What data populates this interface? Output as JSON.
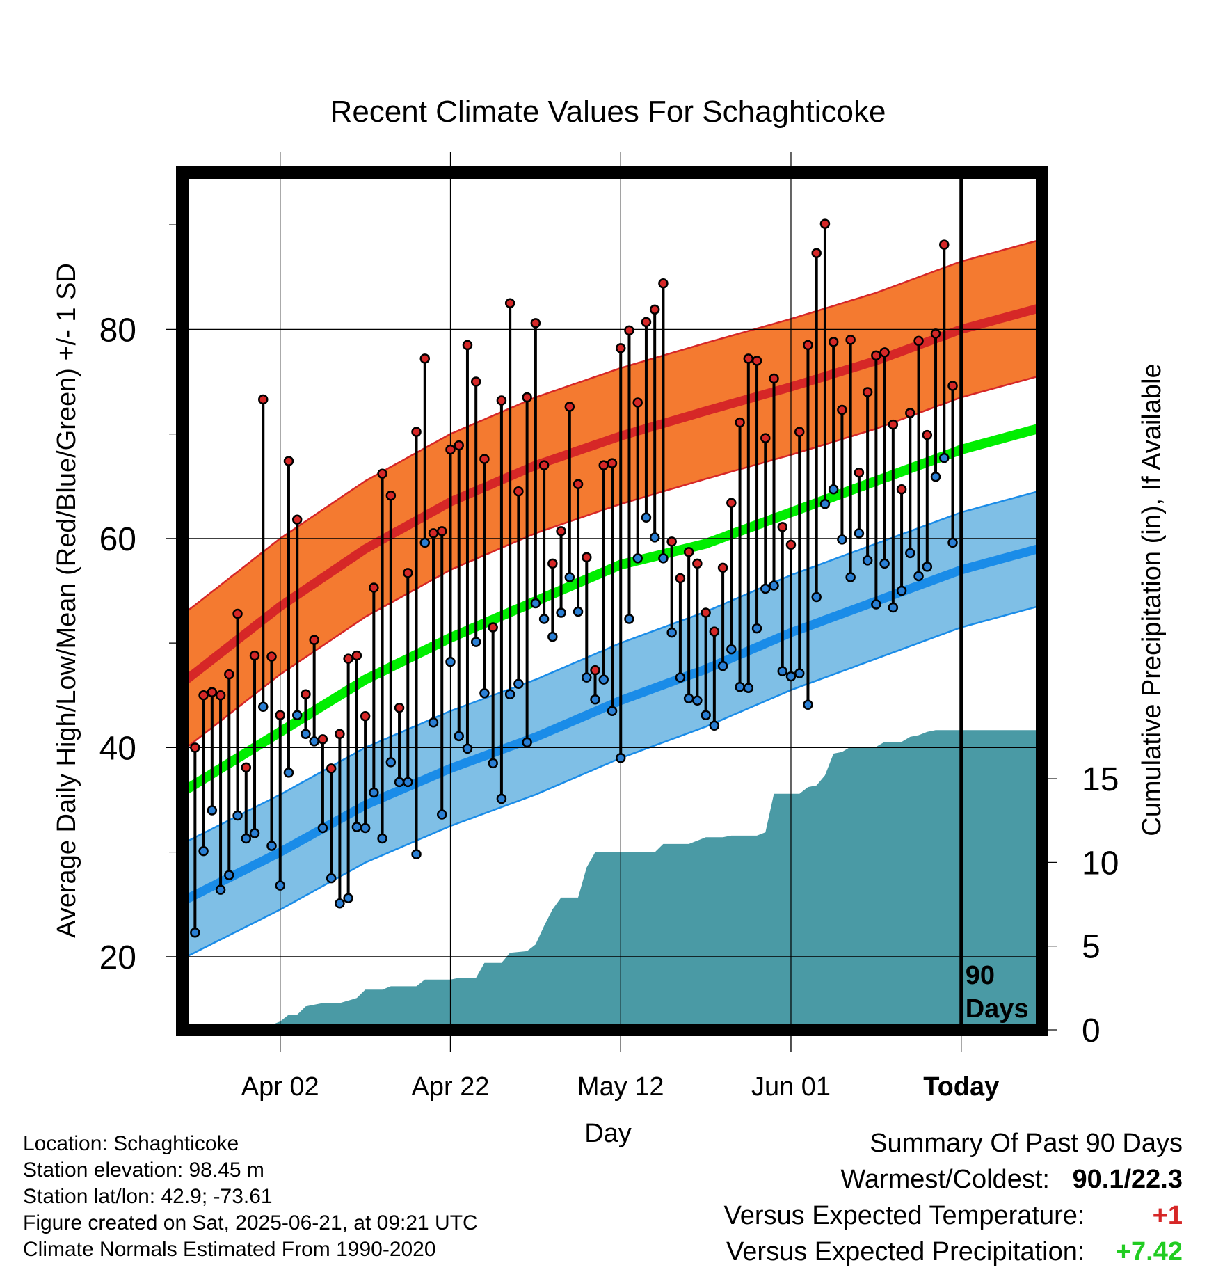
{
  "chart_data": {
    "type": "line",
    "title": "Recent Climate Values For Schaghticoke",
    "xlabel": "Day",
    "ylabel": "Average Daily High/Low/Mean (Red/Blue/Green) +/- 1 SD",
    "y2label": "Cumulative Precipitation (in), If Available",
    "x_ticks": [
      {
        "label": "Apr 02",
        "day": 10
      },
      {
        "label": "Apr 22",
        "day": 30
      },
      {
        "label": "May 12",
        "day": 50
      },
      {
        "label": "Jun 01",
        "day": 70
      },
      {
        "label": "Today",
        "day": 90
      }
    ],
    "y_ticks": [
      20,
      40,
      60,
      80
    ],
    "y2_ticks": [
      0,
      5,
      10,
      15
    ],
    "ylim": [
      13,
      95
    ],
    "y2lim": [
      0,
      51.2
    ],
    "xlim": [
      -1.5,
      99.5
    ],
    "grid": true,
    "today_marker": "90\nDays",
    "colors": {
      "high_band": "#f47a30",
      "high_line": "#d62727",
      "high_edge": "#d62727",
      "low_band": "#7fbfe6",
      "low_line": "#1a8ce8",
      "low_edge": "#1a8ce8",
      "mean_line": "#00ee00",
      "precip": "#4a9aa5",
      "high_point": "#d62727",
      "low_point": "#2a7fd4"
    },
    "normals": {
      "days": [
        -1,
        10,
        20,
        30,
        40,
        50,
        60,
        70,
        80,
        90,
        99
      ],
      "high_mean": [
        46.5,
        53.5,
        59,
        63.5,
        67,
        69.8,
        72.2,
        74.5,
        77,
        80,
        82
      ],
      "high_sd": 6.5,
      "low_mean": [
        25.5,
        30,
        34.5,
        38,
        41,
        44.5,
        47.5,
        51,
        54,
        57,
        59
      ],
      "low_sd": 5.5,
      "mean": [
        36,
        41.5,
        46.5,
        50.5,
        54,
        57.5,
        59.5,
        62.5,
        65.5,
        68.5,
        70.5
      ]
    },
    "series": [
      {
        "name": "Daily High",
        "values": [
          40,
          45,
          45.3,
          45,
          47,
          52.8,
          38.1,
          48.8,
          73.3,
          48.7,
          43.1,
          67.4,
          61.8,
          45.1,
          50.3,
          40.8,
          38,
          41.3,
          48.5,
          48.8,
          43,
          55.3,
          66.2,
          64.1,
          43.8,
          56.7,
          70.2,
          77.2,
          60.5,
          60.7,
          68.5,
          68.9,
          78.5,
          75,
          67.6,
          51.5,
          73.2,
          82.5,
          64.5,
          73.5,
          80.6,
          67,
          57.6,
          60.7,
          72.6,
          65.2,
          58.2,
          47.4,
          67,
          67.2,
          78.2,
          79.9,
          73,
          80.7,
          81.9,
          84.4,
          59.7,
          56.2,
          58.7,
          57.6,
          52.9,
          51.1,
          57.2,
          63.4,
          71.1,
          77.2,
          77,
          69.6,
          75.3,
          61.1,
          59.4,
          70.2,
          78.5,
          87.3,
          90.1,
          78.8,
          72.3,
          79,
          66.3,
          74,
          77.5,
          77.8,
          70.9,
          64.7,
          72,
          78.9,
          69.9,
          79.6,
          88.1,
          74.6
        ]
      },
      {
        "name": "Daily Low",
        "values": [
          22.3,
          30.1,
          34,
          26.4,
          27.8,
          33.5,
          31.3,
          31.8,
          43.9,
          30.6,
          26.8,
          37.6,
          43.1,
          41.3,
          40.6,
          32.3,
          27.5,
          25.1,
          25.6,
          32.4,
          32.3,
          35.7,
          31.3,
          38.6,
          36.7,
          36.7,
          29.8,
          59.6,
          42.4,
          33.6,
          48.2,
          41.1,
          39.9,
          50.1,
          45.2,
          38.5,
          35.1,
          45.1,
          46.1,
          40.5,
          53.8,
          52.3,
          50.6,
          52.9,
          56.3,
          53,
          46.7,
          44.6,
          46.5,
          43.5,
          39,
          52.3,
          58.1,
          62,
          60.1,
          58.1,
          51,
          46.7,
          44.7,
          44.5,
          43.1,
          42.1,
          47.8,
          49.4,
          45.8,
          45.7,
          51.4,
          55.2,
          55.5,
          47.3,
          46.8,
          47.1,
          44.1,
          54.4,
          63.3,
          64.7,
          59.9,
          56.3,
          60.5,
          57.9,
          53.7,
          57.6,
          53.4,
          55,
          58.6,
          56.4,
          57.3,
          65.9,
          67.7,
          59.6
        ]
      },
      {
        "name": "Cumulative Precipitation",
        "points": [
          [
            -1,
            0
          ],
          [
            5.5,
            0
          ],
          [
            6,
            0.2
          ],
          [
            8.5,
            0.2
          ],
          [
            10,
            0.5
          ],
          [
            11,
            0.9
          ],
          [
            12,
            0.9
          ],
          [
            13,
            1.4
          ],
          [
            14,
            1.5
          ],
          [
            15,
            1.6
          ],
          [
            17,
            1.6
          ],
          [
            19,
            1.9
          ],
          [
            20,
            2.4
          ],
          [
            22,
            2.4
          ],
          [
            23,
            2.6
          ],
          [
            26,
            2.6
          ],
          [
            27,
            3
          ],
          [
            30,
            3
          ],
          [
            31,
            3.1
          ],
          [
            33,
            3.1
          ],
          [
            34,
            4
          ],
          [
            36,
            4
          ],
          [
            37,
            4.6
          ],
          [
            39,
            4.7
          ],
          [
            40,
            5.1
          ],
          [
            41,
            6.2
          ],
          [
            42,
            7.2
          ],
          [
            43,
            7.9
          ],
          [
            45,
            7.9
          ],
          [
            46,
            9.7
          ],
          [
            47,
            10.6
          ],
          [
            50,
            10.6
          ],
          [
            52,
            10.6
          ],
          [
            54,
            10.6
          ],
          [
            55,
            11.1
          ],
          [
            58,
            11.1
          ],
          [
            59,
            11.3
          ],
          [
            60,
            11.5
          ],
          [
            62,
            11.5
          ],
          [
            63,
            11.6
          ],
          [
            66,
            11.6
          ],
          [
            67,
            11.8
          ],
          [
            68,
            14.1
          ],
          [
            71,
            14.1
          ],
          [
            72,
            14.5
          ],
          [
            73,
            14.6
          ],
          [
            74,
            15.2
          ],
          [
            75,
            16.5
          ],
          [
            76,
            16.6
          ],
          [
            77,
            16.9
          ],
          [
            80,
            16.9
          ],
          [
            81,
            17.2
          ],
          [
            83,
            17.2
          ],
          [
            84,
            17.5
          ],
          [
            85,
            17.6
          ],
          [
            86,
            17.8
          ],
          [
            87,
            17.9
          ],
          [
            99,
            17.9
          ]
        ]
      }
    ]
  },
  "info": {
    "location": "Location: Schaghticoke",
    "elevation": "Station elevation: 98.45 m",
    "latlon": "Station lat/lon: 42.9; -73.61",
    "created": "Figure created on Sat, 2025-06-21, at 09:21 UTC",
    "normals": "Climate Normals Estimated From 1990-2020"
  },
  "summary": {
    "title": "Summary Of Past 90 Days",
    "warmest_label": "Warmest/Coldest:",
    "warmest_value": "90.1/22.3",
    "temp_label": "Versus Expected Temperature:",
    "temp_value": "+1",
    "temp_color": "#d62727",
    "precip_label": "Versus Expected Precipitation:",
    "precip_value": "+7.42",
    "precip_color": "#22cc22"
  }
}
